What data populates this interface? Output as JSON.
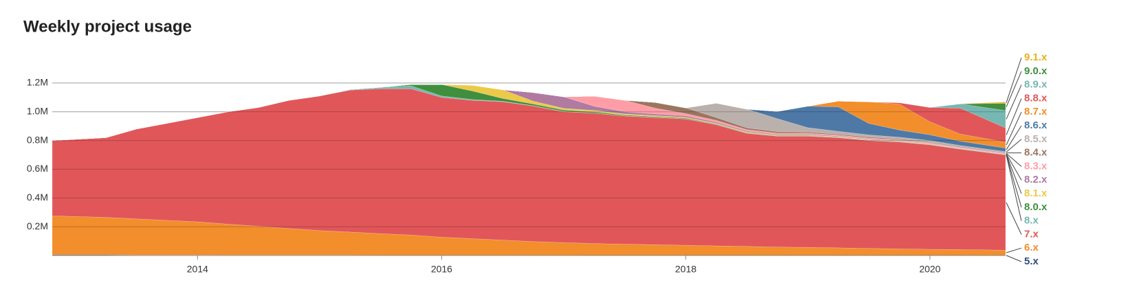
{
  "chart_data": {
    "type": "stacked-area",
    "title": "Weekly project usage",
    "x": [
      2012.81,
      2013.25,
      2013.5,
      2013.75,
      2014.0,
      2014.25,
      2014.5,
      2014.75,
      2015.0,
      2015.25,
      2015.5,
      2015.75,
      2016.0,
      2016.25,
      2016.5,
      2016.75,
      2017.0,
      2017.25,
      2017.5,
      2017.75,
      2018.0,
      2018.25,
      2018.5,
      2018.75,
      2019.0,
      2019.25,
      2019.5,
      2019.75,
      2020.0,
      2020.25,
      2020.62
    ],
    "xlim": [
      2012.81,
      2020.62
    ],
    "xticks": [
      2014,
      2016,
      2018,
      2020
    ],
    "ylim": [
      0,
      1400000
    ],
    "yticks": [
      {
        "value": 200000,
        "label": "0.2M"
      },
      {
        "value": 400000,
        "label": "0.4M"
      },
      {
        "value": 600000,
        "label": "0.6M"
      },
      {
        "value": 800000,
        "label": "0.8M"
      },
      {
        "value": 1000000,
        "label": "1.0M"
      },
      {
        "value": 1200000,
        "label": "1.2M"
      }
    ],
    "grid": true,
    "legend": "right",
    "series": [
      {
        "name": "5.x",
        "color": "#2f4b7c",
        "values": [
          5000,
          5000,
          4000,
          4000,
          4000,
          3000,
          3000,
          3000,
          3000,
          3000,
          2000,
          2000,
          2000,
          2000,
          2000,
          2000,
          2000,
          1000,
          1000,
          1000,
          1000,
          1000,
          1000,
          1000,
          1000,
          1000,
          1000,
          1000,
          1000,
          1000,
          1000
        ]
      },
      {
        "name": "6.x",
        "color": "#f28e2b",
        "values": [
          270000,
          260000,
          250000,
          240000,
          230000,
          215000,
          200000,
          185000,
          170000,
          160000,
          150000,
          140000,
          125000,
          115000,
          105000,
          95000,
          88000,
          82000,
          78000,
          74000,
          70000,
          66000,
          62000,
          58000,
          55000,
          52000,
          48000,
          45000,
          42000,
          40000,
          36000
        ]
      },
      {
        "name": "7.x",
        "color": "#e15759",
        "values": [
          525000,
          555000,
          626000,
          676000,
          726000,
          782000,
          827000,
          892000,
          937000,
          987000,
          1008000,
          1018000,
          973000,
          963000,
          963000,
          943000,
          910000,
          907000,
          891000,
          885000,
          879000,
          843000,
          787000,
          771000,
          774000,
          767000,
          751000,
          744000,
          727000,
          699000,
          663000
        ]
      },
      {
        "name": "8.x",
        "color": "#76b7b2",
        "values": [
          0,
          0,
          0,
          0,
          0,
          0,
          0,
          0,
          0,
          5000,
          10000,
          20000,
          10000,
          5000,
          3000,
          2000,
          2000,
          1000,
          1000,
          1000,
          1000,
          1000,
          1000,
          1000,
          1000,
          1000,
          1000,
          1000,
          1000,
          1000,
          1000
        ]
      },
      {
        "name": "8.0.x",
        "color": "#3f8f3f",
        "values": [
          0,
          0,
          0,
          0,
          0,
          0,
          0,
          0,
          0,
          0,
          0,
          10000,
          80000,
          60000,
          20000,
          12000,
          10000,
          8000,
          6000,
          5000,
          5000,
          4000,
          3000,
          3000,
          3000,
          2000,
          2000,
          2000,
          2000,
          2000,
          2000
        ]
      },
      {
        "name": "8.1.x",
        "color": "#edc948",
        "values": [
          0,
          0,
          0,
          0,
          0,
          0,
          0,
          0,
          0,
          0,
          0,
          0,
          0,
          40000,
          60000,
          20000,
          12000,
          10000,
          8000,
          7000,
          6000,
          5000,
          5000,
          4000,
          4000,
          3000,
          3000,
          3000,
          3000,
          2000,
          2000
        ]
      },
      {
        "name": "8.2.x",
        "color": "#b07aa1",
        "values": [
          0,
          0,
          0,
          0,
          0,
          0,
          0,
          0,
          0,
          0,
          0,
          0,
          0,
          0,
          0,
          60000,
          80000,
          30000,
          15000,
          12000,
          10000,
          8000,
          7000,
          6000,
          6000,
          5000,
          5000,
          4000,
          4000,
          3000,
          3000
        ]
      },
      {
        "name": "8.3.x",
        "color": "#ff9da7",
        "values": [
          0,
          0,
          0,
          0,
          0,
          0,
          0,
          0,
          0,
          0,
          0,
          0,
          0,
          0,
          0,
          0,
          0,
          70000,
          80000,
          40000,
          15000,
          12000,
          10000,
          8000,
          7000,
          6000,
          6000,
          5000,
          5000,
          4000,
          4000
        ]
      },
      {
        "name": "8.4.x",
        "color": "#9c755f",
        "values": [
          0,
          0,
          0,
          0,
          0,
          0,
          0,
          0,
          0,
          0,
          0,
          0,
          0,
          0,
          0,
          0,
          0,
          0,
          0,
          40000,
          40000,
          20000,
          12000,
          10000,
          8000,
          7000,
          7000,
          6000,
          5000,
          5000,
          4000
        ]
      },
      {
        "name": "8.5.x",
        "color": "#bab0ac",
        "values": [
          0,
          0,
          0,
          0,
          0,
          0,
          0,
          0,
          0,
          0,
          0,
          0,
          0,
          0,
          0,
          0,
          0,
          0,
          0,
          0,
          0,
          100000,
          130000,
          90000,
          30000,
          20000,
          15000,
          12000,
          10000,
          8000,
          7000
        ]
      },
      {
        "name": "8.6.x",
        "color": "#4e79a7",
        "values": [
          0,
          0,
          0,
          0,
          0,
          0,
          0,
          0,
          0,
          0,
          0,
          0,
          0,
          0,
          0,
          0,
          0,
          0,
          0,
          0,
          0,
          0,
          0,
          50000,
          150000,
          170000,
          80000,
          50000,
          40000,
          30000,
          25000
        ]
      },
      {
        "name": "8.7.x",
        "color": "#f28e2b",
        "values": [
          0,
          0,
          0,
          0,
          0,
          0,
          0,
          0,
          0,
          0,
          0,
          0,
          0,
          0,
          0,
          0,
          0,
          0,
          0,
          0,
          0,
          0,
          0,
          0,
          0,
          40000,
          150000,
          180000,
          90000,
          50000,
          40000
        ]
      },
      {
        "name": "8.8.x",
        "color": "#e15759",
        "values": [
          0,
          0,
          0,
          0,
          0,
          0,
          0,
          0,
          0,
          0,
          0,
          0,
          0,
          0,
          0,
          0,
          0,
          0,
          0,
          0,
          0,
          0,
          0,
          0,
          0,
          0,
          0,
          10000,
          100000,
          180000,
          100000
        ]
      },
      {
        "name": "8.9.x",
        "color": "#76b7b2",
        "values": [
          0,
          0,
          0,
          0,
          0,
          0,
          0,
          0,
          0,
          0,
          0,
          0,
          0,
          0,
          0,
          0,
          0,
          0,
          0,
          0,
          0,
          0,
          0,
          0,
          0,
          0,
          0,
          0,
          0,
          30000,
          120000
        ]
      },
      {
        "name": "9.0.x",
        "color": "#3f8f3f",
        "values": [
          0,
          0,
          0,
          0,
          0,
          0,
          0,
          0,
          0,
          0,
          0,
          0,
          0,
          0,
          0,
          0,
          0,
          0,
          0,
          0,
          0,
          0,
          0,
          0,
          0,
          0,
          0,
          0,
          0,
          0,
          50000
        ]
      },
      {
        "name": "9.1.x",
        "color": "#e5b022",
        "values": [
          0,
          0,
          0,
          0,
          0,
          0,
          0,
          0,
          0,
          0,
          0,
          0,
          0,
          0,
          0,
          0,
          0,
          0,
          0,
          0,
          0,
          0,
          0,
          0,
          0,
          0,
          0,
          0,
          0,
          0,
          10000
        ]
      }
    ]
  }
}
